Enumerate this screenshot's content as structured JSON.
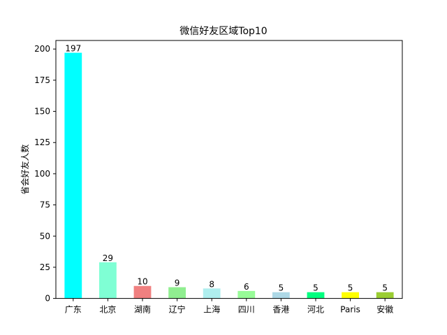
{
  "chart_data": {
    "type": "bar",
    "title": "微信好友区域Top10",
    "xlabel": "",
    "ylabel": "省会好友人数",
    "categories": [
      "广东",
      "北京",
      "湖南",
      "辽宁",
      "上海",
      "四川",
      "香港",
      "河北",
      "Paris",
      "安徽"
    ],
    "values": [
      197,
      29,
      10,
      9,
      8,
      6,
      5,
      5,
      5,
      5
    ],
    "colors": [
      "#00ffff",
      "#7fffd4",
      "#f08080",
      "#90ee90",
      "#afeeee",
      "#98fb98",
      "#add8e6",
      "#00ff7f",
      "#ffff00",
      "#9acd32"
    ],
    "ylim": [
      0,
      206.85
    ],
    "yticks": [
      0,
      25,
      50,
      75,
      100,
      125,
      150,
      175,
      200
    ],
    "grid": false,
    "legend": "none"
  }
}
